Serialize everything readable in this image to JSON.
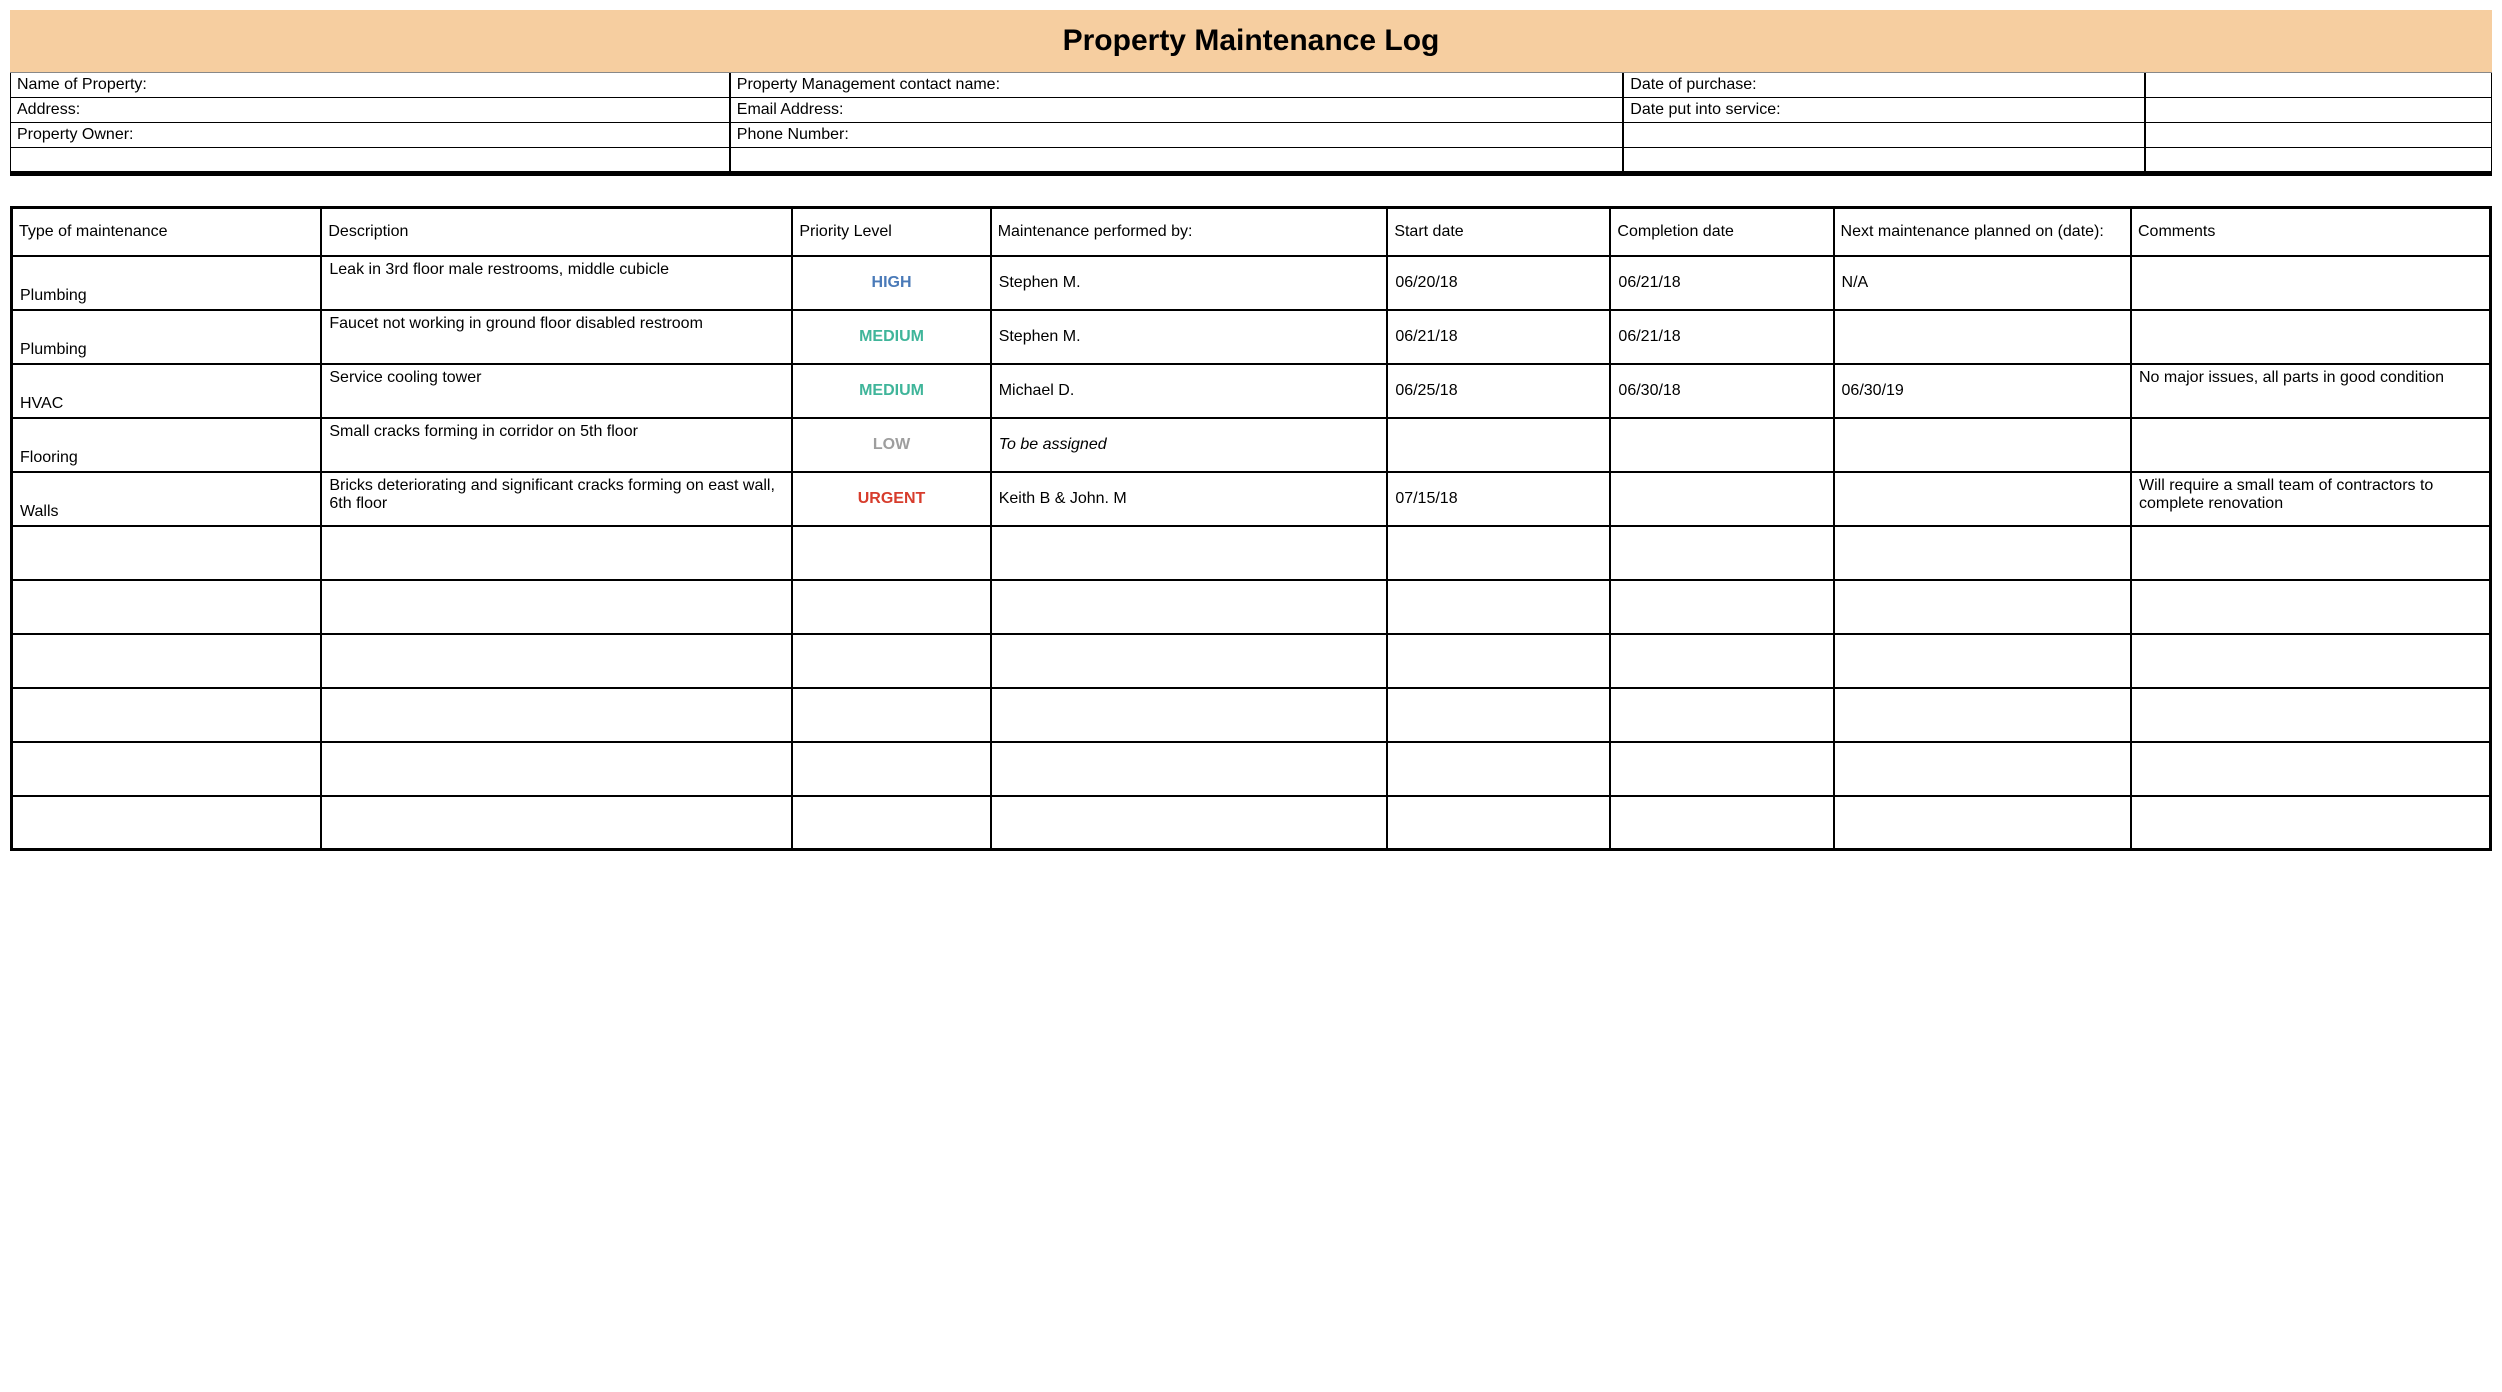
{
  "title": "Property Maintenance Log",
  "colors": {
    "title_bg": "#f6cea0",
    "priority_high": "#4a7ab8",
    "priority_medium": "#3fb59a",
    "priority_low": "#9e9e9e",
    "priority_urgent": "#d73c2c"
  },
  "info_labels": {
    "r0c0": "Name of Property:",
    "r0c1": "Property Management contact name:",
    "r0c2": "Date of purchase:",
    "r0c3": "",
    "r1c0": "Address:",
    "r1c1": "Email Address:",
    "r1c2": "Date put into service:",
    "r1c3": "",
    "r2c0": "Property Owner:",
    "r2c1": "Phone Number:",
    "r2c2": "",
    "r2c3": "",
    "r3c0": "",
    "r3c1": "",
    "r3c2": "",
    "r3c3": ""
  },
  "log": {
    "columns": [
      "Type of maintenance",
      "Description",
      "Priority Level",
      "Maintenance performed by:",
      "Start date",
      "Completion date",
      "Next maintenance planned on (date):",
      "Comments"
    ],
    "col_widths_pct": [
      12.5,
      19,
      8,
      16,
      9,
      9,
      12,
      14.5
    ],
    "rows": [
      {
        "type": "Plumbing",
        "description": "Leak in 3rd floor male restrooms, middle cubicle",
        "priority": "HIGH",
        "priority_class": "p-high",
        "performed_by": "Stephen M.",
        "performed_by_italic": false,
        "start": "06/20/18",
        "completion": "06/21/18",
        "next": "N/A",
        "comments": ""
      },
      {
        "type": "Plumbing",
        "description": "Faucet not working in ground floor disabled restroom",
        "priority": "MEDIUM",
        "priority_class": "p-medium",
        "performed_by": "Stephen M.",
        "performed_by_italic": false,
        "start": "06/21/18",
        "completion": "06/21/18",
        "next": "",
        "comments": ""
      },
      {
        "type": "HVAC",
        "description": "Service cooling tower",
        "priority": "MEDIUM",
        "priority_class": "p-medium",
        "performed_by": "Michael D.",
        "performed_by_italic": false,
        "start": "06/25/18",
        "completion": "06/30/18",
        "next": "06/30/19",
        "comments": "No major issues, all parts in good condition"
      },
      {
        "type": "Flooring",
        "description": "Small cracks forming in corridor on 5th floor",
        "priority": "LOW",
        "priority_class": "p-low",
        "performed_by": "To be assigned",
        "performed_by_italic": true,
        "start": "",
        "completion": "",
        "next": "",
        "comments": ""
      },
      {
        "type": "Walls",
        "description": "Bricks deteriorating and significant cracks forming on east wall, 6th floor",
        "priority": "URGENT",
        "priority_class": "p-urgent",
        "performed_by": "Keith B & John. M",
        "performed_by_italic": false,
        "start": "07/15/18",
        "completion": "",
        "next": "",
        "comments": "Will require a small team of contractors to complete renovation"
      }
    ],
    "empty_rows": 6
  }
}
